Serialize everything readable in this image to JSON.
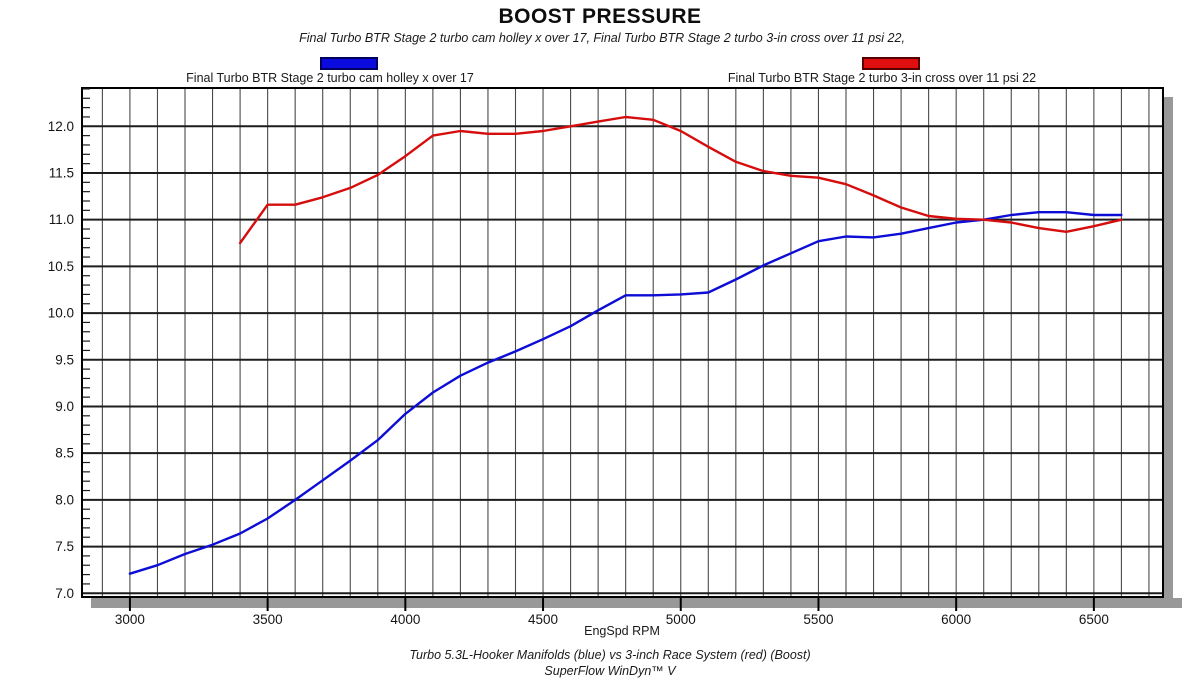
{
  "chart_data": {
    "type": "line",
    "title": "BOOST PRESSURE",
    "subtitle": "Final Turbo BTR Stage 2 turbo cam holley x over 17, Final Turbo BTR Stage 2 turbo 3-in cross over 11 psi 22,",
    "xlabel": "EngSpd RPM",
    "footer_line1": "Turbo 5.3L-Hooker Manifolds (blue) vs 3-inch Race System (red) (Boost)",
    "footer_line2": "SuperFlow WinDyn™ V",
    "xlim": [
      2826,
      6751
    ],
    "ylim": [
      6.96,
      12.41
    ],
    "x_major_ticks": [
      3000,
      3500,
      4000,
      4500,
      5000,
      5500,
      6000,
      6500
    ],
    "x_minor_step": 100,
    "y_major_ticks": [
      7.0,
      7.5,
      8.0,
      8.5,
      9.0,
      9.5,
      10.0,
      10.5,
      11.0,
      11.5,
      12.0
    ],
    "y_minor_step": 0.1,
    "grid": "vertical minor lines every 100 RPM; horizontal major lines every 0.5 psi",
    "legend_position": "top",
    "colors": {
      "blue_series": "#0d0dd6",
      "red_series": "#d60d0d",
      "grid_minor": "#4a4a4a",
      "grid_major": "#1d1d1d",
      "plot_border": "#000000",
      "shadow": "#989898",
      "background": "#ffffff"
    },
    "series": [
      {
        "name": "Final Turbo BTR Stage 2 turbo cam holley x over 17",
        "color": "#0d0dd6",
        "x": [
          3000,
          3100,
          3200,
          3300,
          3400,
          3500,
          3600,
          3700,
          3800,
          3900,
          4000,
          4100,
          4200,
          4300,
          4400,
          4500,
          4600,
          4700,
          4800,
          4900,
          5000,
          5100,
          5200,
          5300,
          5400,
          5500,
          5600,
          5700,
          5800,
          5900,
          6000,
          6100,
          6200,
          6300,
          6400,
          6500,
          6600
        ],
        "values": [
          7.21,
          7.3,
          7.42,
          7.52,
          7.64,
          7.8,
          8.0,
          8.21,
          8.42,
          8.64,
          8.92,
          9.15,
          9.33,
          9.47,
          9.59,
          9.72,
          9.86,
          10.03,
          10.19,
          10.19,
          10.2,
          10.22,
          10.36,
          10.51,
          10.64,
          10.77,
          10.82,
          10.81,
          10.85,
          10.91,
          10.97,
          11.0,
          11.05,
          11.08,
          11.08,
          11.05,
          11.05
        ]
      },
      {
        "name": "Final Turbo BTR Stage 2 turbo 3-in cross over 11 psi 22",
        "color": "#d60d0d",
        "x": [
          3400,
          3500,
          3600,
          3700,
          3800,
          3900,
          4000,
          4100,
          4200,
          4300,
          4400,
          4500,
          4600,
          4700,
          4800,
          4900,
          5000,
          5100,
          5200,
          5300,
          5400,
          5500,
          5600,
          5700,
          5800,
          5900,
          6000,
          6100,
          6200,
          6300,
          6400,
          6500,
          6600
        ],
        "values": [
          10.75,
          11.16,
          11.16,
          11.24,
          11.34,
          11.48,
          11.68,
          11.9,
          11.95,
          11.92,
          11.92,
          11.95,
          12.0,
          12.05,
          12.1,
          12.07,
          11.95,
          11.78,
          11.62,
          11.52,
          11.47,
          11.45,
          11.38,
          11.26,
          11.13,
          11.04,
          11.01,
          11.0,
          10.97,
          10.91,
          10.87,
          10.93,
          11.0
        ]
      }
    ]
  }
}
